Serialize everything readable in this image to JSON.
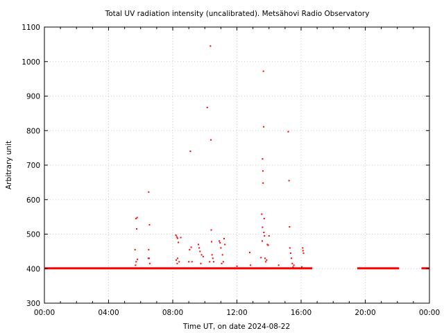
{
  "chart_data": {
    "type": "scatter",
    "title": "Total UV radiation intensity (uncalibrated). Metsähovi Radio Observatory",
    "xlabel": "Time UT, on date 2024-08-22",
    "ylabel": "Arbitrary unit",
    "xlim": [
      0,
      24
    ],
    "ylim": [
      300,
      1100
    ],
    "x_ticks": [
      {
        "value": 0,
        "label": "00:00"
      },
      {
        "value": 4,
        "label": "04:00"
      },
      {
        "value": 8,
        "label": "08:00"
      },
      {
        "value": 12,
        "label": "12:00"
      },
      {
        "value": 16,
        "label": "16:00"
      },
      {
        "value": 20,
        "label": "20:00"
      },
      {
        "value": 24,
        "label": "00:00"
      }
    ],
    "y_ticks": [
      300,
      400,
      500,
      600,
      700,
      800,
      900,
      1000,
      1100
    ],
    "grid": true,
    "baseline": {
      "value": 401,
      "x_ranges": [
        [
          0,
          16.7
        ],
        [
          19.5,
          22.1
        ],
        [
          23.5,
          24
        ]
      ]
    },
    "series": [
      {
        "color": "#ff0000",
        "points": [
          [
            5.65,
            455
          ],
          [
            5.7,
            545
          ],
          [
            5.78,
            548
          ],
          [
            5.75,
            515
          ],
          [
            5.72,
            420
          ],
          [
            5.8,
            427
          ],
          [
            5.68,
            410
          ],
          [
            6.5,
            622
          ],
          [
            6.55,
            527
          ],
          [
            6.5,
            455
          ],
          [
            6.48,
            430
          ],
          [
            6.53,
            430
          ],
          [
            6.57,
            415
          ],
          [
            8.2,
            497
          ],
          [
            8.25,
            492
          ],
          [
            8.3,
            488
          ],
          [
            8.35,
            476
          ],
          [
            8.3,
            430
          ],
          [
            8.22,
            425
          ],
          [
            8.28,
            415
          ],
          [
            8.5,
            490
          ],
          [
            8.4,
            420
          ],
          [
            9.1,
            740
          ],
          [
            9.05,
            455
          ],
          [
            9.15,
            462
          ],
          [
            9.0,
            420
          ],
          [
            9.2,
            420
          ],
          [
            9.6,
            470
          ],
          [
            9.65,
            460
          ],
          [
            9.7,
            450
          ],
          [
            9.8,
            440
          ],
          [
            9.9,
            435
          ],
          [
            9.75,
            415
          ],
          [
            10.15,
            867
          ],
          [
            10.3,
            420
          ],
          [
            10.35,
            1045
          ],
          [
            10.38,
            773
          ],
          [
            10.4,
            512
          ],
          [
            10.42,
            478
          ],
          [
            10.45,
            440
          ],
          [
            10.5,
            430
          ],
          [
            10.55,
            420
          ],
          [
            10.9,
            480
          ],
          [
            10.95,
            475
          ],
          [
            11.0,
            460
          ],
          [
            11.1,
            440
          ],
          [
            11.2,
            487
          ],
          [
            11.25,
            470
          ],
          [
            11.15,
            420
          ],
          [
            11.05,
            415
          ],
          [
            12.0,
            407
          ],
          [
            12.8,
            447
          ],
          [
            12.85,
            410
          ],
          [
            13.5,
            432
          ],
          [
            13.55,
            558
          ],
          [
            13.6,
            718
          ],
          [
            13.62,
            683
          ],
          [
            13.63,
            648
          ],
          [
            13.65,
            972
          ],
          [
            13.67,
            811
          ],
          [
            13.6,
            520
          ],
          [
            13.7,
            545
          ],
          [
            13.72,
            495
          ],
          [
            13.58,
            480
          ],
          [
            13.68,
            505
          ],
          [
            13.75,
            430
          ],
          [
            13.8,
            420
          ],
          [
            13.9,
            470
          ],
          [
            13.95,
            468
          ],
          [
            14.0,
            495
          ],
          [
            13.85,
            425
          ],
          [
            14.6,
            410
          ],
          [
            15.2,
            797
          ],
          [
            15.25,
            655
          ],
          [
            15.28,
            521
          ],
          [
            15.3,
            460
          ],
          [
            15.35,
            445
          ],
          [
            15.4,
            430
          ],
          [
            15.45,
            415
          ],
          [
            15.5,
            405
          ],
          [
            15.55,
            410
          ],
          [
            16.1,
            460
          ],
          [
            16.12,
            452
          ],
          [
            16.15,
            445
          ],
          [
            16.05,
            405
          ]
        ]
      }
    ]
  }
}
